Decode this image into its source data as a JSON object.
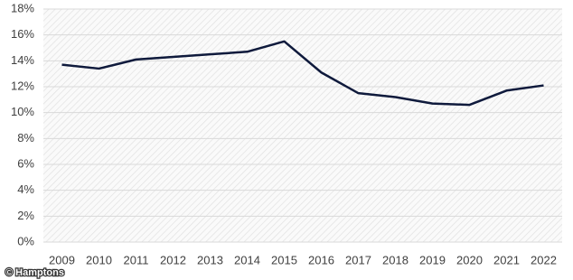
{
  "chart_data": {
    "type": "line",
    "categories": [
      "2009",
      "2010",
      "2011",
      "2012",
      "2013",
      "2014",
      "2015",
      "2016",
      "2017",
      "2018",
      "2019",
      "2020",
      "2021",
      "2022"
    ],
    "series": [
      {
        "color": "#0f1a3c",
        "values": [
          13.7,
          13.4,
          14.1,
          14.3,
          14.5,
          14.7,
          15.5,
          13.1,
          11.5,
          11.2,
          10.7,
          10.6,
          11.7,
          12.1
        ]
      }
    ],
    "ylim": [
      0,
      18
    ],
    "yticks": [
      {
        "value": 0,
        "label": "0%"
      },
      {
        "value": 2,
        "label": "2%"
      },
      {
        "value": 4,
        "label": "4%"
      },
      {
        "value": 6,
        "label": "6%"
      },
      {
        "value": 8,
        "label": "8%"
      },
      {
        "value": 10,
        "label": "10%"
      },
      {
        "value": 12,
        "label": "12%"
      },
      {
        "value": 14,
        "label": "14%"
      },
      {
        "value": 16,
        "label": "16%"
      },
      {
        "value": 18,
        "label": "18%"
      }
    ],
    "grid": true,
    "credit": "© Hamptons"
  }
}
